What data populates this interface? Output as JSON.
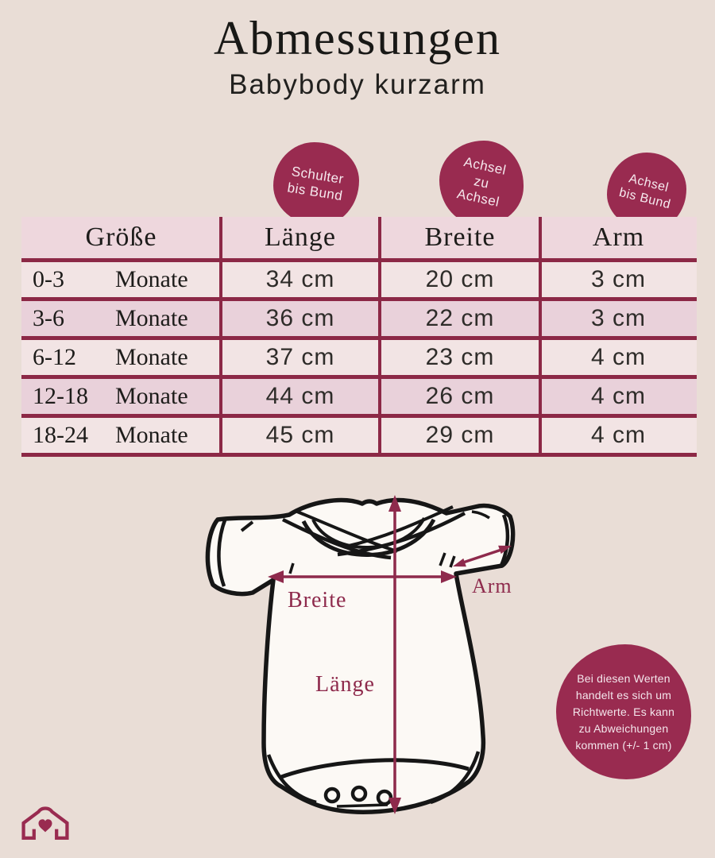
{
  "colors": {
    "background": "#e9ddd6",
    "accent": "#992b50",
    "table_line": "#8c2846",
    "row_light": "#f2e4e4",
    "row_dark": "#e9d1da",
    "header_row": "#eed7dd"
  },
  "header": {
    "title": "Abmessungen",
    "subtitle": "Babybody kurzarm"
  },
  "badges": [
    {
      "lines": [
        "Schulter",
        "bis Bund"
      ]
    },
    {
      "lines": [
        "Achsel",
        "zu",
        "Achsel"
      ]
    },
    {
      "lines": [
        "Achsel",
        "bis Bund"
      ]
    }
  ],
  "table": {
    "columns": [
      "Größe",
      "Länge",
      "Breite",
      "Arm"
    ],
    "rows": [
      {
        "range": "0-3",
        "unit": "Monate",
        "values": [
          "34 cm",
          "20 cm",
          "3 cm"
        ]
      },
      {
        "range": "3-6",
        "unit": "Monate",
        "values": [
          "36 cm",
          "22 cm",
          "3 cm"
        ]
      },
      {
        "range": "6-12",
        "unit": "Monate",
        "values": [
          "37 cm",
          "23 cm",
          "4 cm"
        ]
      },
      {
        "range": "12-18",
        "unit": "Monate",
        "values": [
          "44 cm",
          "26 cm",
          "4 cm"
        ]
      },
      {
        "range": "18-24",
        "unit": "Monate",
        "values": [
          "45 cm",
          "29 cm",
          "4 cm"
        ]
      }
    ]
  },
  "diagram": {
    "labels": {
      "breite": "Breite",
      "laenge": "Länge",
      "arm": "Arm"
    }
  },
  "disclaimer": {
    "text": "Bei diesen Werten handelt es sich um Richtwerte. Es kann zu Abweichungen kommen (+/- 1 cm)"
  },
  "chart_data": {
    "type": "table",
    "title": "Abmessungen",
    "subtitle": "Babybody kurzarm",
    "columns": [
      "Größe",
      "Länge",
      "Breite",
      "Arm"
    ],
    "column_hints": {
      "Länge": "Schulter bis Bund",
      "Breite": "Achsel zu Achsel",
      "Arm": "Achsel bis Bund"
    },
    "rows": [
      [
        "0-3 Monate",
        "34 cm",
        "20 cm",
        "3 cm"
      ],
      [
        "3-6 Monate",
        "36 cm",
        "22 cm",
        "3 cm"
      ],
      [
        "6-12 Monate",
        "37 cm",
        "23 cm",
        "4 cm"
      ],
      [
        "12-18 Monate",
        "44 cm",
        "26 cm",
        "4 cm"
      ],
      [
        "18-24 Monate",
        "45 cm",
        "29 cm",
        "4 cm"
      ]
    ],
    "note": "Bei diesen Werten handelt es sich um Richtwerte. Es kann zu Abweichungen kommen (+/- 1 cm)"
  }
}
